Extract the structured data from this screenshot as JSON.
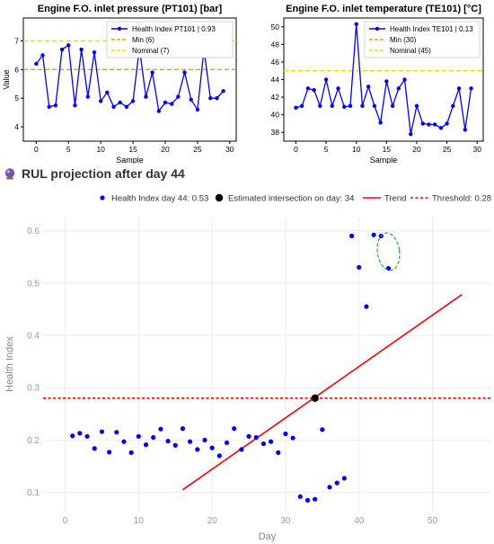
{
  "section": {
    "title": "RUL projection after day 44",
    "icon": "crystal-ball-icon"
  },
  "chart_data": [
    {
      "type": "line",
      "title": "Engine F.O. inlet pressure (PT101) [bar]",
      "xlabel": "Sample",
      "ylabel": "Value",
      "xlim": [
        -2,
        31
      ],
      "ylim": [
        3.5,
        7.8
      ],
      "xticks": [
        0,
        5,
        10,
        15,
        20,
        25,
        30
      ],
      "yticks": [
        4,
        5,
        6,
        7
      ],
      "legend_position": "top-right",
      "series": [
        {
          "name": "Health Index PT101 | 0.93",
          "color": "#0000ff",
          "x": [
            0,
            1,
            2,
            3,
            4,
            5,
            6,
            7,
            8,
            9,
            10,
            11,
            12,
            13,
            14,
            15,
            16,
            17,
            18,
            19,
            20,
            21,
            22,
            23,
            24,
            25,
            26,
            27,
            28,
            29
          ],
          "values": [
            6.2,
            6.5,
            4.7,
            4.75,
            6.7,
            6.85,
            4.75,
            6.7,
            5.05,
            6.6,
            4.9,
            5.2,
            4.7,
            4.85,
            4.7,
            4.9,
            6.75,
            5.05,
            5.9,
            4.55,
            4.85,
            4.8,
            5.05,
            5.9,
            4.95,
            4.6,
            6.7,
            5.0,
            5.0,
            5.25
          ]
        },
        {
          "name": "Min (6)",
          "color": "#ff9900",
          "dash": "dashed",
          "hline": 6
        },
        {
          "name": "Nominal (7)",
          "color": "#eedd00",
          "dash": "dashed",
          "hline": 7
        }
      ]
    },
    {
      "type": "line",
      "title": "Engine F.O. inlet temperature (TE101) [°C]",
      "xlabel": "Sample",
      "ylabel": "",
      "xlim": [
        -2,
        31
      ],
      "ylim": [
        37,
        51
      ],
      "xticks": [
        0,
        5,
        10,
        15,
        20,
        25,
        30
      ],
      "yticks": [
        38,
        40,
        42,
        44,
        46,
        48,
        50
      ],
      "legend_position": "top-right",
      "series": [
        {
          "name": "Health Index TE101 | 0.13",
          "color": "#0000ff",
          "x": [
            0,
            1,
            2,
            3,
            4,
            5,
            6,
            7,
            8,
            9,
            10,
            11,
            12,
            13,
            14,
            15,
            16,
            17,
            18,
            19,
            20,
            21,
            22,
            23,
            24,
            25,
            26,
            27,
            28,
            29
          ],
          "values": [
            40.8,
            41.0,
            43.0,
            42.8,
            41.0,
            44.0,
            41.0,
            43.0,
            40.9,
            41.0,
            50.3,
            41.0,
            43.2,
            41.0,
            39.1,
            43.8,
            41.0,
            43.0,
            44.0,
            37.8,
            41.0,
            39.0,
            38.9,
            38.9,
            38.5,
            39.0,
            41.0,
            43.0,
            38.3,
            43.0
          ]
        },
        {
          "name": "Min (30)",
          "color": "#ff9900",
          "dash": "dashed",
          "hline": 30
        },
        {
          "name": "Nominal (45)",
          "color": "#eedd00",
          "dash": "dashed",
          "hline": 45
        }
      ]
    },
    {
      "type": "scatter",
      "title": "",
      "xlabel": "Day",
      "ylabel": "Health Index",
      "xlim": [
        -3,
        58
      ],
      "ylim": [
        0.065,
        0.625
      ],
      "xticks": [
        0,
        10,
        20,
        30,
        40,
        50
      ],
      "yticks": [
        0.1,
        0.2,
        0.3,
        0.4,
        0.5,
        0.6
      ],
      "legend_position": "top",
      "grid": true,
      "series": [
        {
          "name": "Health Index day 44: 0.53",
          "color": "#0000ff",
          "x": [
            1,
            2,
            3,
            4,
            5,
            6,
            7,
            8,
            9,
            10,
            11,
            12,
            13,
            14,
            15,
            16,
            17,
            18,
            19,
            20,
            21,
            22,
            23,
            24,
            25,
            26,
            27,
            28,
            29,
            30,
            31,
            32,
            33,
            34,
            35,
            36,
            37,
            38,
            39,
            40,
            41,
            42,
            43,
            44
          ],
          "values": [
            0.208,
            0.213,
            0.207,
            0.184,
            0.216,
            0.177,
            0.215,
            0.197,
            0.176,
            0.207,
            0.191,
            0.205,
            0.221,
            0.198,
            0.19,
            0.222,
            0.197,
            0.182,
            0.2,
            0.185,
            0.17,
            0.195,
            0.222,
            0.182,
            0.207,
            0.205,
            0.193,
            0.197,
            0.176,
            0.212,
            0.204,
            0.092,
            0.085,
            0.087,
            0.22,
            0.11,
            0.118,
            0.127,
            0.59,
            0.53,
            0.455,
            0.592,
            0.59,
            0.528
          ]
        },
        {
          "name": "Estimated intersection on day: 34",
          "color": "#000000",
          "x": [
            34
          ],
          "values": [
            0.28
          ]
        },
        {
          "name": "Trend",
          "color": "#ff0000",
          "x": [
            16,
            54
          ],
          "values": [
            0.105,
            0.478
          ]
        },
        {
          "name": "Threshold: 0.28",
          "color": "#ff0000",
          "dash": "dotted",
          "hline": 0.28
        }
      ],
      "highlight": {
        "shape": "ellipse",
        "color": "#33aa33",
        "center": [
          44,
          0.56
        ],
        "rx_days": 1.5,
        "ry_value": 0.036
      }
    }
  ]
}
